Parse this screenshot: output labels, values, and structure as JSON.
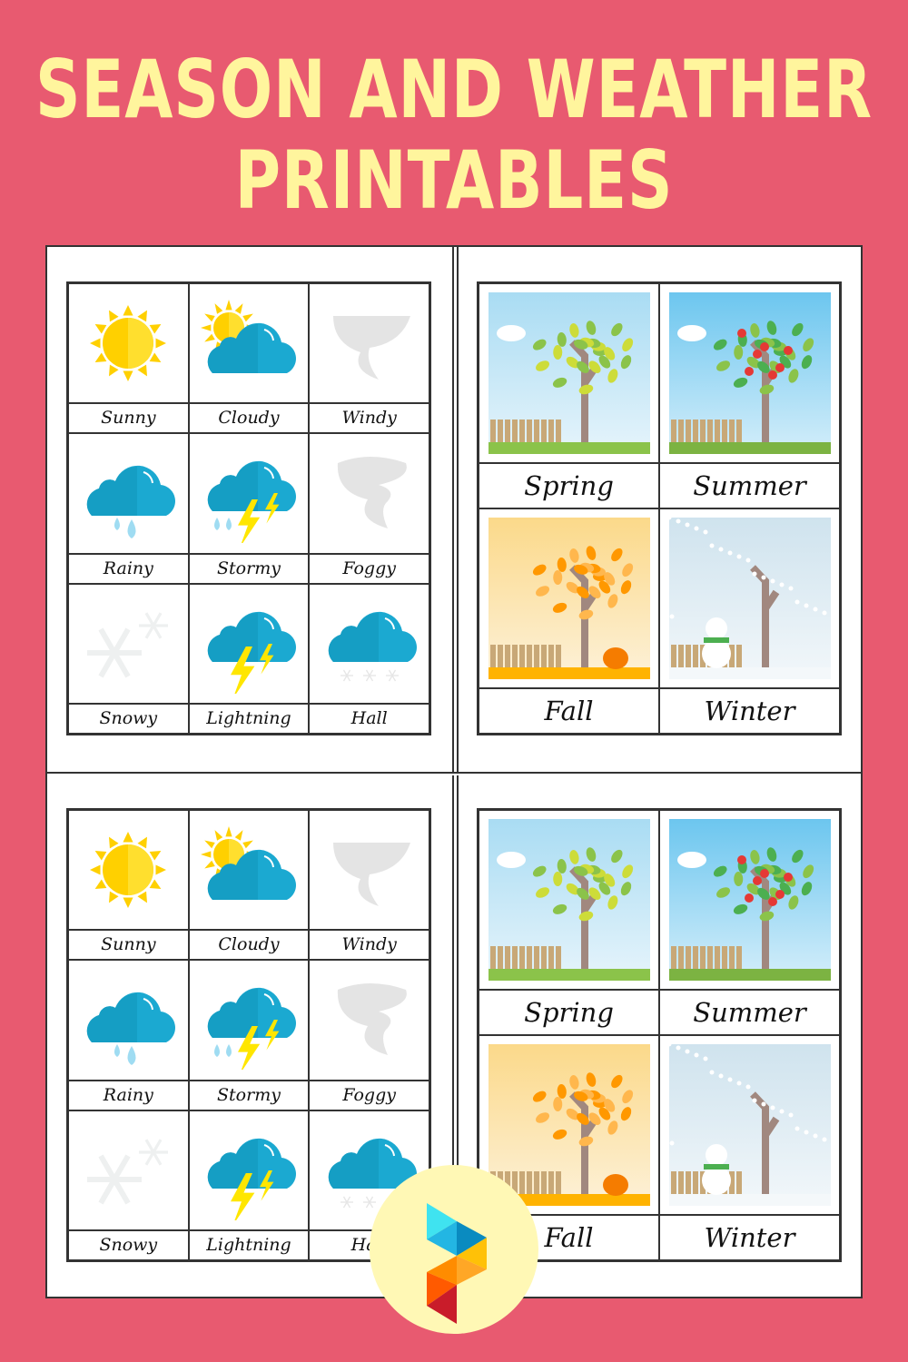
{
  "title": {
    "line1": "Season and Weather",
    "line2": "Printables"
  },
  "colors": {
    "background": "#e85a70",
    "title": "#fff59d",
    "cloud": "#1ba9d1",
    "sun": "#ffd000"
  },
  "weather_panels": [
    {
      "cards": [
        {
          "label": "Sunny",
          "icon": "sun"
        },
        {
          "label": "Cloudy",
          "icon": "sun-cloud"
        },
        {
          "label": "Windy",
          "icon": "wind"
        },
        {
          "label": "Rainy",
          "icon": "rain"
        },
        {
          "label": "Stormy",
          "icon": "storm"
        },
        {
          "label": "Foggy",
          "icon": "tornado"
        },
        {
          "label": "Snowy",
          "icon": "snowflake"
        },
        {
          "label": "Lightning",
          "icon": "lightning"
        },
        {
          "label": "Hall",
          "icon": "hail"
        }
      ]
    },
    {
      "cards": [
        {
          "label": "Sunny",
          "icon": "sun"
        },
        {
          "label": "Cloudy",
          "icon": "sun-cloud"
        },
        {
          "label": "Windy",
          "icon": "wind"
        },
        {
          "label": "Rainy",
          "icon": "rain"
        },
        {
          "label": "Stormy",
          "icon": "storm"
        },
        {
          "label": "Foggy",
          "icon": "tornado"
        },
        {
          "label": "Snowy",
          "icon": "snowflake"
        },
        {
          "label": "Lightning",
          "icon": "lightning"
        },
        {
          "label": "Hall",
          "icon": "hail"
        }
      ]
    }
  ],
  "season_panels": [
    {
      "cards": [
        {
          "label": "Spring",
          "scene": "spring"
        },
        {
          "label": "Summer",
          "scene": "summer"
        },
        {
          "label": "Fall",
          "scene": "fall"
        },
        {
          "label": "Winter",
          "scene": "winter"
        }
      ]
    },
    {
      "cards": [
        {
          "label": "Spring",
          "scene": "spring"
        },
        {
          "label": "Summer",
          "scene": "summer"
        },
        {
          "label": "Fall",
          "scene": "fall"
        },
        {
          "label": "Winter",
          "scene": "winter"
        }
      ]
    }
  ],
  "logo": {
    "icon": "printablee-logo"
  }
}
